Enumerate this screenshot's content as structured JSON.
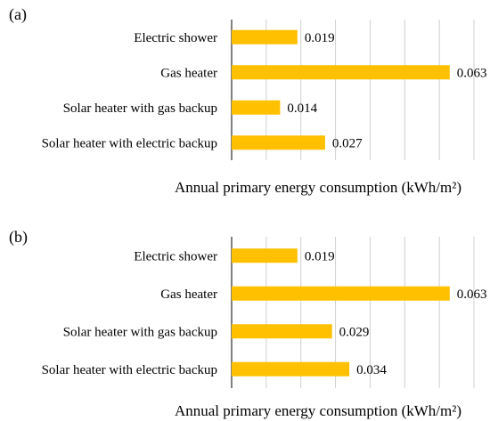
{
  "chart_data": [
    {
      "type": "bar",
      "orientation": "horizontal",
      "panel_label": "(a)",
      "categories": [
        "Electric shower",
        "Gas heater",
        "Solar heater with gas backup",
        "Solar heater with electric backup"
      ],
      "values": [
        0.019,
        0.063,
        0.014,
        0.027
      ],
      "data_labels": [
        "0.019",
        "0.063",
        "0.014",
        "0.027"
      ],
      "xlabel": "Annual primary energy consumption (kWh/m²)",
      "xlim": [
        0,
        0.07
      ],
      "grid": true,
      "bar_color": "#FFC000"
    },
    {
      "type": "bar",
      "orientation": "horizontal",
      "panel_label": "(b)",
      "categories": [
        "Electric shower",
        "Gas heater",
        "Solar heater with gas backup",
        "Solar heater with electric backup"
      ],
      "values": [
        0.019,
        0.063,
        0.029,
        0.034
      ],
      "data_labels": [
        "0.019",
        "0.063",
        "0.029",
        "0.034"
      ],
      "xlabel": "Annual primary energy consumption (kWh/m²)",
      "xlim": [
        0,
        0.07
      ],
      "grid": true,
      "bar_color": "#FFC000"
    }
  ]
}
